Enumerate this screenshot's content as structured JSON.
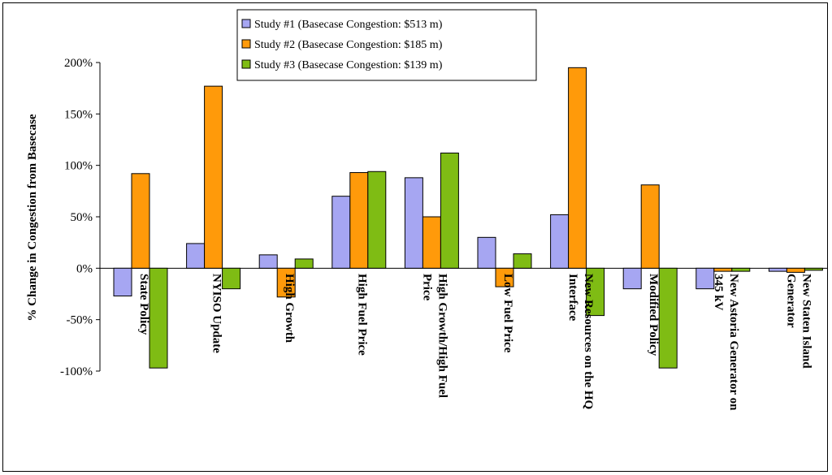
{
  "chart_data": {
    "type": "bar",
    "title": "",
    "xlabel": "",
    "ylabel": "% Change in Congestion from Basecase",
    "ylim": [
      -100,
      200
    ],
    "ytick_values": [
      -100,
      -50,
      0,
      50,
      100,
      150,
      200
    ],
    "ytick_labels": [
      "-100%",
      "-50%",
      "0%",
      "50%",
      "100%",
      "150%",
      "200%"
    ],
    "legend_position": "top-center",
    "grid": false,
    "categories": [
      [
        "State Policy"
      ],
      [
        "NYISO Update"
      ],
      [
        "High Growth"
      ],
      [
        "High Fuel Price"
      ],
      [
        "High Growth/High Fuel",
        "Price"
      ],
      [
        "Low Fuel Price"
      ],
      [
        "New Resources on the HQ",
        "Interface"
      ],
      [
        "Modified Policy"
      ],
      [
        "New Astoria Generator on",
        "345 kV"
      ],
      [
        "New Staten Island",
        "Generator"
      ]
    ],
    "series": [
      {
        "name": "Study #1 (Basecase Congestion: $513 m)",
        "color": "#a6a6f2",
        "values": [
          -27,
          24,
          13,
          70,
          88,
          30,
          52,
          -20,
          -20,
          -3
        ]
      },
      {
        "name": "Study #2 (Basecase Congestion: $185 m)",
        "color": "#ff9a0a",
        "values": [
          92,
          177,
          -28,
          93,
          50,
          -18,
          195,
          81,
          -3,
          -4
        ]
      },
      {
        "name": "Study #3 (Basecase Congestion: $139 m)",
        "color": "#7fbc14",
        "values": [
          -97,
          -20,
          9,
          94,
          112,
          14,
          -46,
          -97,
          -3,
          -2
        ]
      }
    ]
  }
}
